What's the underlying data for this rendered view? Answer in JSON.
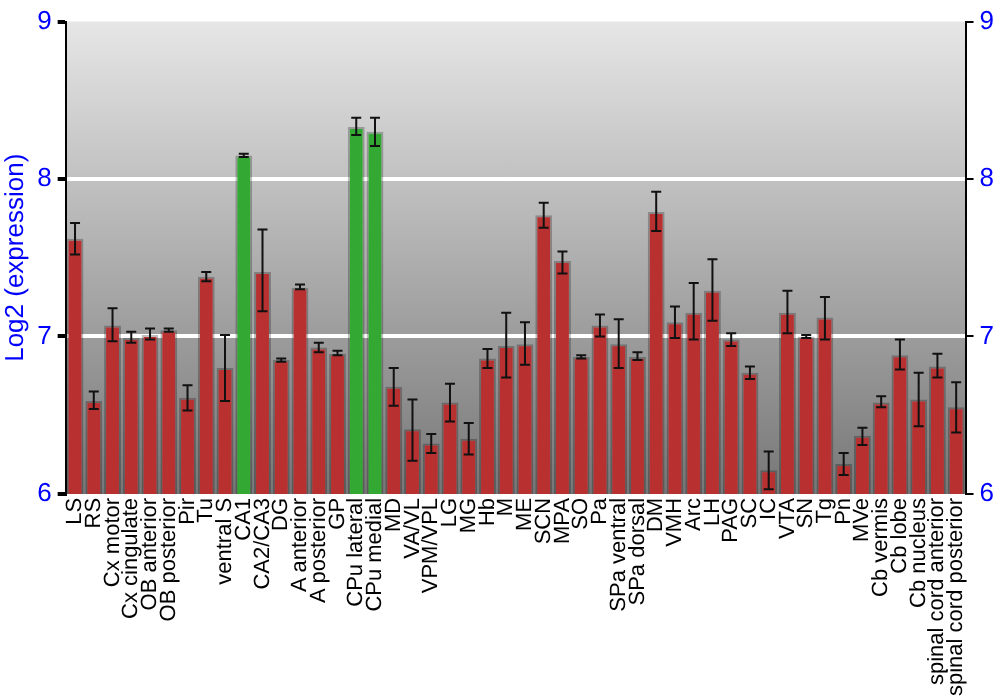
{
  "chart_data": {
    "type": "bar",
    "ylabel": "Log2 (expression)",
    "categories": [
      "LS",
      "RS",
      "Cx motor",
      "Cx cingulate",
      "OB anterior",
      "OB posterior",
      "Pir",
      "Tu",
      "ventral S",
      "CA1",
      "CA2/CA3",
      "DG",
      "A anterior",
      "A posterior",
      "GP",
      "CPu lateral",
      "CPu medial",
      "MD",
      "VA/VL",
      "VPM/VPL",
      "LG",
      "MG",
      "Hb",
      "M",
      "ME",
      "SCN",
      "MPA",
      "SO",
      "Pa",
      "SPa ventral",
      "SPa dorsal",
      "DM",
      "VMH",
      "Arc",
      "LH",
      "PAG",
      "SC",
      "IC",
      "VTA",
      "SN",
      "Tg",
      "Pn",
      "MVe",
      "Cb vermis",
      "Cb lobe",
      "Cb nucleus",
      "spinal cord anterior",
      "spinal cord posterior"
    ],
    "values": [
      7.62,
      6.59,
      7.07,
      6.99,
      7.01,
      7.04,
      6.61,
      7.38,
      6.8,
      8.15,
      7.41,
      6.85,
      7.31,
      6.93,
      6.89,
      8.33,
      8.3,
      6.68,
      6.41,
      6.32,
      6.58,
      6.35,
      6.86,
      6.94,
      6.95,
      7.77,
      7.48,
      6.87,
      7.07,
      6.95,
      6.87,
      7.79,
      7.09,
      7.15,
      7.29,
      6.98,
      6.77,
      6.15,
      7.15,
      7.0,
      7.12,
      6.19,
      6.37,
      6.58,
      6.88,
      6.6,
      6.81,
      6.55
    ],
    "errors": [
      [
        7.52,
        7.72
      ],
      [
        6.54,
        6.65
      ],
      [
        6.97,
        7.18
      ],
      [
        6.96,
        7.03
      ],
      [
        6.98,
        7.05
      ],
      [
        7.03,
        7.05
      ],
      [
        6.53,
        6.69
      ],
      [
        7.35,
        7.41
      ],
      [
        6.59,
        7.01
      ],
      [
        8.14,
        8.16
      ],
      [
        7.16,
        7.68
      ],
      [
        6.84,
        6.86
      ],
      [
        7.3,
        7.33
      ],
      [
        6.9,
        6.96
      ],
      [
        6.88,
        6.91
      ],
      [
        8.28,
        8.39
      ],
      [
        8.21,
        8.39
      ],
      [
        6.56,
        6.8
      ],
      [
        6.21,
        6.6
      ],
      [
        6.26,
        6.38
      ],
      [
        6.46,
        6.7
      ],
      [
        6.25,
        6.45
      ],
      [
        6.8,
        6.92
      ],
      [
        6.74,
        7.15
      ],
      [
        6.82,
        7.09
      ],
      [
        7.69,
        7.85
      ],
      [
        7.4,
        7.54
      ],
      [
        6.86,
        6.88
      ],
      [
        7.0,
        7.14
      ],
      [
        6.8,
        7.11
      ],
      [
        6.85,
        6.9
      ],
      [
        7.67,
        7.92
      ],
      [
        6.99,
        7.19
      ],
      [
        6.98,
        7.34
      ],
      [
        7.1,
        7.49
      ],
      [
        6.94,
        7.02
      ],
      [
        6.73,
        6.81
      ],
      [
        6.03,
        6.27
      ],
      [
        7.02,
        7.29
      ],
      [
        6.99,
        7.01
      ],
      [
        6.98,
        7.25
      ],
      [
        6.12,
        6.26
      ],
      [
        6.31,
        6.42
      ],
      [
        6.55,
        6.62
      ],
      [
        6.79,
        6.98
      ],
      [
        6.43,
        6.77
      ],
      [
        6.74,
        6.89
      ],
      [
        6.39,
        6.71
      ]
    ],
    "colors": [
      "#b83030",
      "#b83030",
      "#b83030",
      "#b83030",
      "#b83030",
      "#b83030",
      "#b83030",
      "#b83030",
      "#b83030",
      "#33a833",
      "#b83030",
      "#b83030",
      "#b83030",
      "#b83030",
      "#b83030",
      "#33a833",
      "#33a833",
      "#b83030",
      "#b83030",
      "#b83030",
      "#b83030",
      "#b83030",
      "#b83030",
      "#b83030",
      "#b83030",
      "#b83030",
      "#b83030",
      "#b83030",
      "#b83030",
      "#b83030",
      "#b83030",
      "#b83030",
      "#b83030",
      "#b83030",
      "#b83030",
      "#b83030",
      "#b83030",
      "#b83030",
      "#b83030",
      "#b83030",
      "#b83030",
      "#b83030",
      "#b83030",
      "#b83030",
      "#b83030",
      "#b83030",
      "#b83030",
      "#b83030"
    ],
    "ylim": [
      6,
      9
    ],
    "yticks": [
      6,
      7,
      8,
      9
    ],
    "y2lim": [
      6,
      9
    ],
    "y2ticks": [
      6,
      7,
      8,
      9
    ],
    "grid": "y",
    "legend": false
  }
}
